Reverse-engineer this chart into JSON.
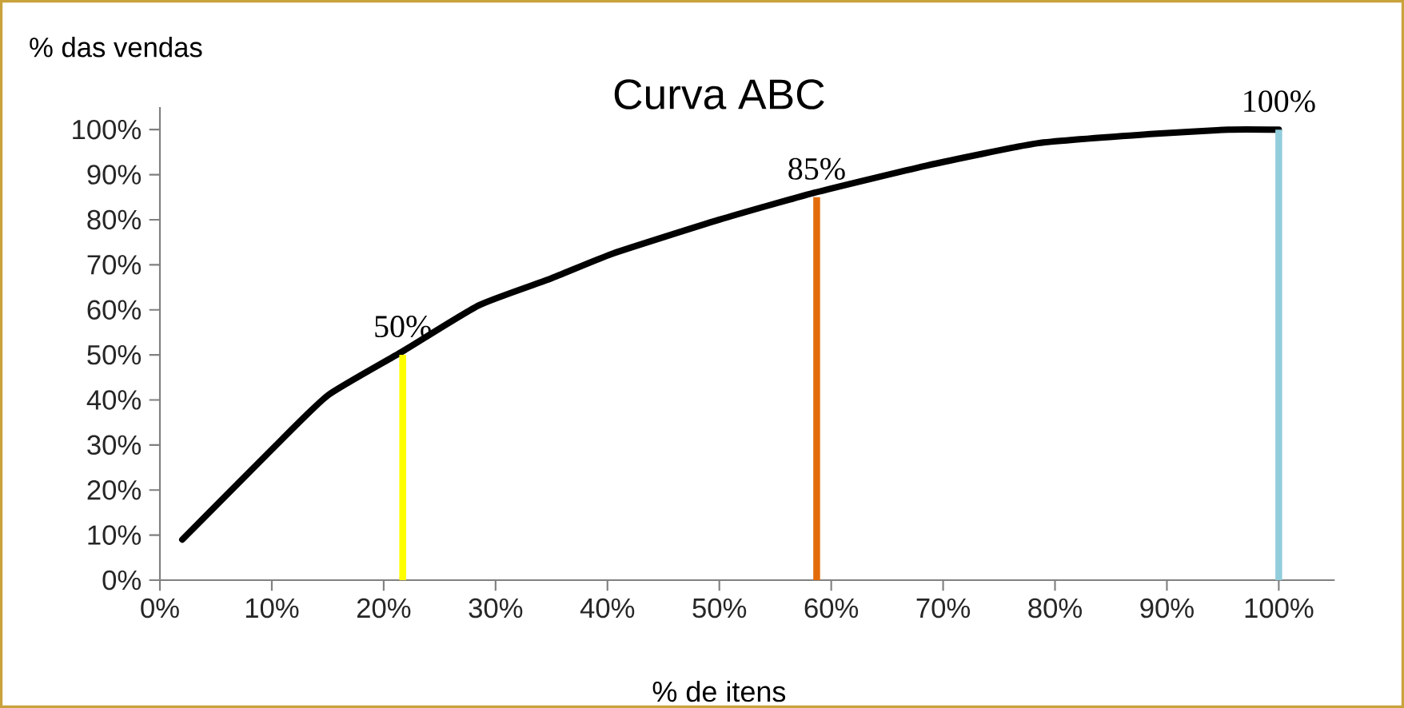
{
  "chart_data": {
    "type": "line",
    "title": "Curva  ABC",
    "xlabel": "% de itens",
    "ylabel": "% das vendas",
    "xlim": [
      0,
      105
    ],
    "ylim": [
      0,
      105
    ],
    "xticks": [
      {
        "value": 0,
        "label": "0%"
      },
      {
        "value": 10,
        "label": "10%"
      },
      {
        "value": 20,
        "label": "20%"
      },
      {
        "value": 30,
        "label": "30%"
      },
      {
        "value": 40,
        "label": "40%"
      },
      {
        "value": 50,
        "label": "50%"
      },
      {
        "value": 60,
        "label": "60%"
      },
      {
        "value": 70,
        "label": "70%"
      },
      {
        "value": 80,
        "label": "80%"
      },
      {
        "value": 90,
        "label": "90%"
      },
      {
        "value": 100,
        "label": "100%"
      }
    ],
    "yticks": [
      {
        "value": 0,
        "label": "0%"
      },
      {
        "value": 10,
        "label": "10%"
      },
      {
        "value": 20,
        "label": "20%"
      },
      {
        "value": 30,
        "label": "30%"
      },
      {
        "value": 40,
        "label": "40%"
      },
      {
        "value": 50,
        "label": "50%"
      },
      {
        "value": 60,
        "label": "60%"
      },
      {
        "value": 70,
        "label": "70%"
      },
      {
        "value": 80,
        "label": "80%"
      },
      {
        "value": 90,
        "label": "90%"
      },
      {
        "value": 100,
        "label": "100%"
      }
    ],
    "series": [
      {
        "color": "#000000",
        "x": [
          2,
          10,
          15,
          21.5,
          28.5,
          35,
          40.5,
          50,
          58.5,
          68.5,
          78.5,
          88.5,
          95.5,
          100
        ],
        "values": [
          9,
          29,
          41,
          50.5,
          61,
          67,
          72.5,
          80,
          86,
          92,
          97,
          99,
          100,
          100
        ]
      },
      {
        "type": "bar",
        "x": [
          21.7,
          58.7,
          100
        ],
        "values": [
          50,
          85,
          100
        ],
        "colors": [
          "#ffff00",
          "#e36c0a",
          "#92cddc"
        ],
        "value_labels": [
          "50%",
          "85%",
          "100%"
        ]
      }
    ]
  }
}
